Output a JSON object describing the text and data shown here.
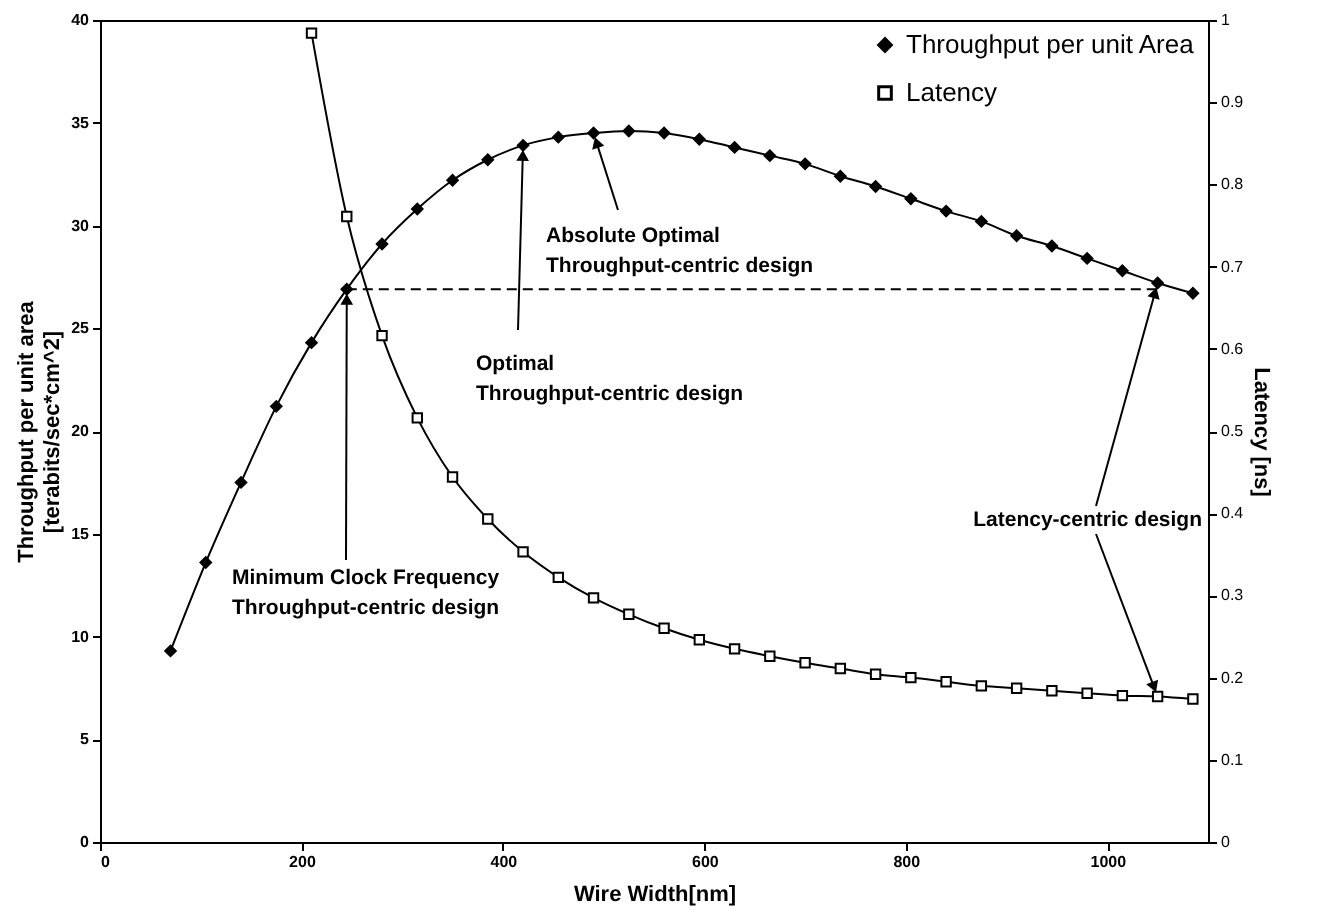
{
  "chart_data": {
    "type": "line",
    "xlabel": "Wire Width[nm]",
    "ylabel": "Throughput per unit area\n[terabits/sec*cm^2]",
    "y2label": "Latency [ns]",
    "xlim": [
      0,
      1100
    ],
    "xticks": [
      0,
      200,
      400,
      600,
      800,
      1000
    ],
    "ylim": [
      0,
      40
    ],
    "yticks": [
      0,
      5,
      10,
      15,
      20,
      25,
      30,
      35,
      40
    ],
    "y2lim": [
      0,
      1
    ],
    "y2ticks": [
      0,
      0.1,
      0.2,
      0.3,
      0.4,
      0.5,
      0.6,
      0.7,
      0.8,
      0.9,
      1
    ],
    "grid": false,
    "legend": "top right",
    "series": [
      {
        "name": "Throughput per unit Area",
        "color": "#000000",
        "marker": "diamond",
        "x": [
          70,
          105,
          140,
          175,
          210,
          245,
          280,
          315,
          350,
          385,
          420,
          455,
          490,
          525,
          560,
          595,
          630,
          665,
          700,
          735,
          770,
          805,
          840,
          875,
          910,
          945,
          980,
          1015,
          1050,
          1085
        ],
        "values": [
          9.3,
          13.6,
          17.5,
          21.2,
          24.3,
          26.9,
          29.1,
          30.8,
          32.2,
          33.2,
          33.9,
          34.3,
          34.5,
          34.6,
          34.5,
          34.2,
          33.8,
          33.4,
          33.0,
          32.4,
          31.9,
          31.3,
          30.7,
          30.2,
          29.5,
          29.0,
          28.4,
          27.8,
          27.2,
          26.7
        ]
      },
      {
        "name": "Latency",
        "color": "#000000",
        "marker": "square",
        "axis": "y2",
        "x": [
          210,
          245,
          280,
          315,
          350,
          385,
          420,
          455,
          490,
          525,
          560,
          595,
          630,
          665,
          700,
          735,
          770,
          805,
          840,
          875,
          910,
          945,
          980,
          1015,
          1050,
          1085
        ],
        "values": [
          0.984,
          0.761,
          0.616,
          0.516,
          0.444,
          0.393,
          0.353,
          0.322,
          0.297,
          0.277,
          0.26,
          0.246,
          0.235,
          0.226,
          0.218,
          0.211,
          0.204,
          0.2,
          0.195,
          0.19,
          0.187,
          0.184,
          0.181,
          0.178,
          0.177,
          0.174
        ]
      },
      {
        "color": "#000000",
        "marker": "none",
        "line_style": "dashed",
        "x": [
          245,
          1050
        ],
        "values": [
          26.9,
          26.9
        ]
      }
    ],
    "annotations": [
      {
        "text": "Absolute Optimal\nThroughput-centric design",
        "x": 490,
        "y": 34.5
      },
      {
        "text": "Optimal\nThroughput-centric design",
        "x": 420,
        "y": 33.9
      },
      {
        "text": "Minimum Clock Frequency\nThroughput-centric design",
        "x": 245,
        "y": 26.9
      },
      {
        "text": "Latency-centric design",
        "x": 1050,
        "y": 27.2
      }
    ]
  }
}
